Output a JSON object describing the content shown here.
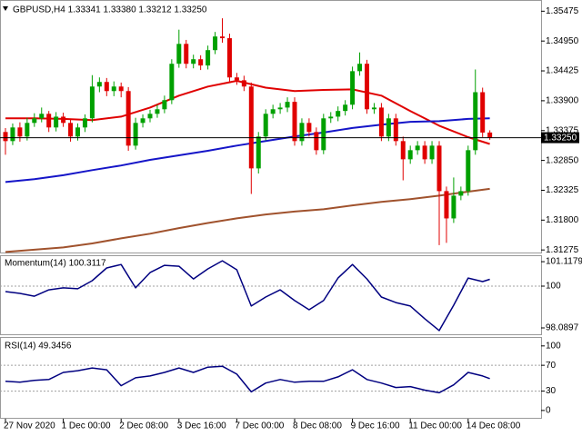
{
  "chart_data": [
    {
      "type": "candlestick",
      "title": "GBPUSD,H4 1.33341 1.33380 1.33212 1.33250",
      "categories": [
        "27 Nov 2020",
        null,
        null,
        null,
        null,
        null,
        null,
        null,
        "1 Dec 00:00",
        null,
        null,
        null,
        null,
        null,
        null,
        null,
        "2 Dec 08:00",
        null,
        null,
        null,
        null,
        null,
        null,
        null,
        "3 Dec 16:00",
        null,
        null,
        null,
        null,
        null,
        null,
        null,
        "7 Dec 00:00",
        null,
        null,
        null,
        null,
        null,
        null,
        null,
        "8 Dec 08:00",
        null,
        null,
        null,
        null,
        null,
        null,
        null,
        "9 Dec 16:00",
        null,
        null,
        null,
        null,
        null,
        null,
        null,
        "11 Dec 00:00",
        null,
        null,
        null,
        null,
        null,
        null,
        null,
        "14 Dec 08:00",
        null,
        null,
        null
      ],
      "open": [
        1.3335,
        1.3319,
        1.3343,
        1.3327,
        1.3351,
        1.3359,
        1.3367,
        1.3343,
        1.3362,
        1.3351,
        1.3327,
        1.3343,
        1.3359,
        1.3415,
        1.3423,
        1.3407,
        1.3415,
        1.3407,
        1.3311,
        1.3351,
        1.3359,
        1.3367,
        1.3375,
        1.3391,
        1.3455,
        1.349,
        1.3455,
        1.3463,
        1.3452,
        1.3479,
        1.3503,
        1.35,
        1.3431,
        1.3426,
        1.3415,
        1.3271,
        1.3327,
        1.3367,
        1.3375,
        1.3378,
        1.3388,
        1.3319,
        1.3351,
        1.3335,
        1.3303,
        1.3359,
        1.3362,
        1.3372,
        1.3383,
        1.3442,
        1.3455,
        1.3375,
        1.3378,
        1.3327,
        1.3359,
        1.3319,
        1.3287,
        1.3303,
        1.3311,
        1.3287,
        1.3311,
        1.3231,
        1.3183,
        1.3223,
        1.3231,
        1.3303,
        1.3405,
        1.33341
      ],
      "high": [
        1.3342,
        1.335,
        1.3352,
        1.336,
        1.3368,
        1.3378,
        1.3372,
        1.337,
        1.3369,
        1.3358,
        1.335,
        1.3366,
        1.3435,
        1.3431,
        1.343,
        1.3424,
        1.3422,
        1.3414,
        1.336,
        1.3366,
        1.3374,
        1.3383,
        1.3399,
        1.3463,
        1.3515,
        1.3497,
        1.3471,
        1.347,
        1.3487,
        1.3511,
        1.3535,
        1.3508,
        1.3439,
        1.3434,
        1.3422,
        1.3335,
        1.3375,
        1.3383,
        1.3386,
        1.3396,
        1.3396,
        1.3359,
        1.3359,
        1.3343,
        1.3367,
        1.337,
        1.338,
        1.3391,
        1.345,
        1.3475,
        1.3462,
        1.3386,
        1.3386,
        1.3367,
        1.3367,
        1.3327,
        1.3311,
        1.3319,
        1.3319,
        1.3319,
        1.3319,
        1.3239,
        1.3255,
        1.3239,
        1.3311,
        1.3445,
        1.3413,
        1.3338
      ],
      "low": [
        1.3295,
        1.3312,
        1.3318,
        1.332,
        1.3344,
        1.3352,
        1.3335,
        1.3336,
        1.3344,
        1.3318,
        1.332,
        1.3335,
        1.3352,
        1.3405,
        1.3398,
        1.3398,
        1.3396,
        1.3302,
        1.3304,
        1.3343,
        1.3352,
        1.336,
        1.3368,
        1.3384,
        1.3448,
        1.3447,
        1.3447,
        1.3444,
        1.3445,
        1.3472,
        1.3492,
        1.3424,
        1.3418,
        1.3407,
        1.3226,
        1.3262,
        1.332,
        1.3359,
        1.3367,
        1.337,
        1.3311,
        1.3311,
        1.3327,
        1.3295,
        1.3296,
        1.3351,
        1.3354,
        1.3364,
        1.3375,
        1.3434,
        1.3367,
        1.3367,
        1.3319,
        1.3319,
        1.3311,
        1.325,
        1.3279,
        1.3295,
        1.3279,
        1.3279,
        1.3136,
        1.314,
        1.3175,
        1.3215,
        1.3223,
        1.3295,
        1.3326,
        1.33212
      ],
      "close": [
        1.3319,
        1.3343,
        1.3327,
        1.3351,
        1.3359,
        1.3367,
        1.3343,
        1.3362,
        1.3351,
        1.3327,
        1.3343,
        1.3359,
        1.3415,
        1.3423,
        1.3407,
        1.3415,
        1.3407,
        1.3311,
        1.3351,
        1.3359,
        1.3367,
        1.3375,
        1.3391,
        1.3455,
        1.349,
        1.3455,
        1.3463,
        1.3452,
        1.3479,
        1.3503,
        1.35,
        1.3431,
        1.3426,
        1.3415,
        1.3271,
        1.3327,
        1.3367,
        1.3375,
        1.3378,
        1.3388,
        1.3319,
        1.3351,
        1.3335,
        1.3303,
        1.3359,
        1.3362,
        1.3372,
        1.3383,
        1.3442,
        1.3455,
        1.3375,
        1.3378,
        1.3327,
        1.3359,
        1.3319,
        1.3287,
        1.3303,
        1.3311,
        1.3287,
        1.3311,
        1.3231,
        1.3183,
        1.3223,
        1.3231,
        1.3303,
        1.3405,
        1.3334,
        1.3325
      ],
      "up_color": "#00a000",
      "down_color": "#e00000",
      "ylim": [
        1.3123,
        1.3564
      ],
      "yticks": [
        1.35475,
        {
          "value": 1.3495,
          "label": "1.34950"
        },
        1.34425,
        {
          "value": 1.339,
          "label": "1.33900"
        },
        1.33375,
        {
          "value": 1.3285,
          "label": "1.32850"
        },
        1.32325,
        {
          "value": 1.318,
          "label": "1.31800"
        },
        1.31275
      ],
      "last_price": {
        "value": 1.3325,
        "label": "1.33250"
      },
      "overlays": [
        {
          "type": "line",
          "color": "#e00000",
          "x": [
            0,
            4,
            8,
            12,
            16,
            20,
            24,
            28,
            32,
            36,
            40,
            44,
            48,
            52,
            56,
            60,
            64,
            67
          ],
          "values": [
            1.3359,
            1.3359,
            1.3358,
            1.3356,
            1.3362,
            1.3378,
            1.3399,
            1.3415,
            1.3425,
            1.3413,
            1.3407,
            1.3409,
            1.341,
            1.3399,
            1.3372,
            1.3346,
            1.3326,
            1.3314
          ]
        },
        {
          "type": "line",
          "color": "#1515c8",
          "x": [
            0,
            4,
            8,
            12,
            16,
            20,
            24,
            28,
            32,
            36,
            40,
            44,
            48,
            52,
            56,
            60,
            64,
            67
          ],
          "values": [
            1.3247,
            1.3252,
            1.3259,
            1.3268,
            1.3276,
            1.3286,
            1.3294,
            1.3302,
            1.3311,
            1.3319,
            1.3327,
            1.3334,
            1.3342,
            1.3348,
            1.3353,
            1.3354,
            1.3358,
            1.3359
          ]
        },
        {
          "type": "line",
          "color": "#a0522d",
          "x": [
            0,
            4,
            8,
            12,
            16,
            20,
            24,
            28,
            32,
            36,
            40,
            44,
            48,
            52,
            56,
            60,
            64,
            67
          ],
          "values": [
            1.3124,
            1.3128,
            1.3132,
            1.3139,
            1.3148,
            1.3156,
            1.3166,
            1.3175,
            1.3183,
            1.319,
            1.3195,
            1.3199,
            1.3206,
            1.3212,
            1.3217,
            1.3223,
            1.323,
            1.3235
          ]
        }
      ]
    },
    {
      "type": "line",
      "title": "Momentum(14) 100.3117",
      "color": "#000080",
      "x": [
        0,
        2,
        4,
        6,
        8,
        10,
        12,
        14,
        16,
        18,
        20,
        22,
        24,
        26,
        28,
        30,
        32,
        34,
        36,
        38,
        40,
        42,
        44,
        46,
        48,
        50,
        52,
        54,
        56,
        58,
        60,
        62,
        64,
        66,
        67
      ],
      "values": [
        99.75,
        99.67,
        99.54,
        99.83,
        99.92,
        99.88,
        100.25,
        100.83,
        100.99,
        99.92,
        100.62,
        100.95,
        100.91,
        100.33,
        100.79,
        101.16,
        100.75,
        99.09,
        99.5,
        99.83,
        99.34,
        98.92,
        99.34,
        100.37,
        100.99,
        100.33,
        99.5,
        99.25,
        99.09,
        98.51,
        97.97,
        99.13,
        100.37,
        100.21,
        100.3117
      ],
      "ylim": [
        97.84,
        101.33
      ],
      "yticks": [
        101.1179,
        100,
        98.0897
      ],
      "reference_lines": [
        100
      ]
    },
    {
      "type": "line",
      "title": "RSI(14) 49.3456",
      "color": "#000080",
      "x": [
        0,
        2,
        4,
        6,
        8,
        10,
        12,
        14,
        16,
        18,
        20,
        22,
        24,
        26,
        28,
        30,
        32,
        34,
        36,
        38,
        40,
        42,
        44,
        46,
        48,
        50,
        52,
        54,
        56,
        58,
        60,
        62,
        64,
        66,
        67
      ],
      "values": [
        45.2,
        43.8,
        46.6,
        47.9,
        58.9,
        61.6,
        65.8,
        63,
        38.4,
        50.7,
        53.4,
        58.9,
        65.8,
        58.9,
        67.1,
        68.5,
        56.2,
        28.8,
        42.5,
        47.9,
        43.8,
        45.2,
        45.2,
        52.1,
        63,
        47.9,
        42.5,
        35.6,
        37,
        31.5,
        27.4,
        39.7,
        58.9,
        53.4,
        49.3456
      ],
      "ylim": [
        -10,
        111
      ],
      "yticks": [
        100,
        70,
        30,
        0
      ],
      "reference_lines": [
        70,
        30
      ]
    }
  ]
}
